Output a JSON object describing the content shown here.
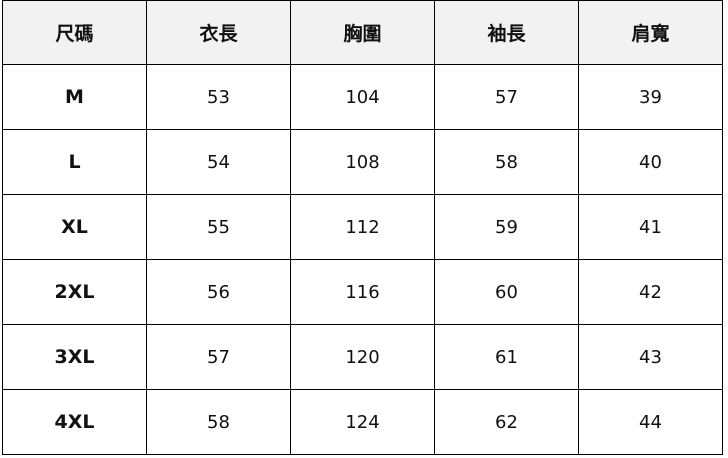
{
  "headers": [
    "尺碼",
    "衣長",
    "胸圍",
    "袖長",
    "肩寬"
  ],
  "rows": [
    [
      "M",
      "53",
      "104",
      "57",
      "39"
    ],
    [
      "L",
      "54",
      "108",
      "58",
      "40"
    ],
    [
      "XL",
      "55",
      "112",
      "59",
      "41"
    ],
    [
      "2XL",
      "56",
      "116",
      "60",
      "42"
    ],
    [
      "3XL",
      "57",
      "120",
      "61",
      "43"
    ],
    [
      "4XL",
      "58",
      "124",
      "62",
      "44"
    ]
  ]
}
